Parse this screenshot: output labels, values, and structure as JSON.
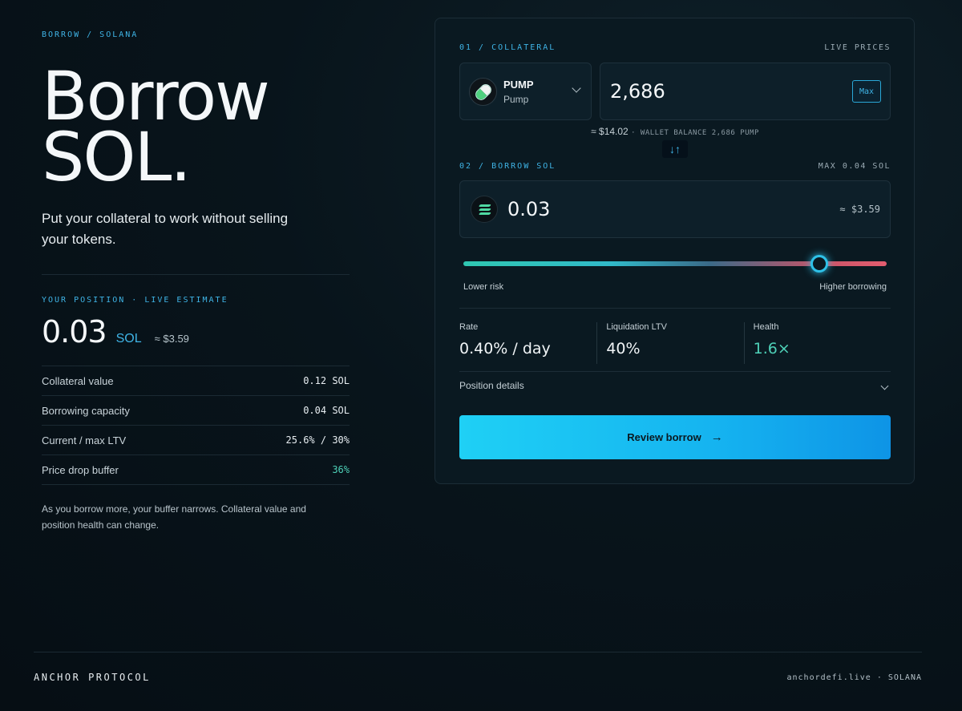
{
  "breadcrumb": "BORROW / SOLANA",
  "hero": {
    "title_line1": "Borrow",
    "title_line2": "SOL.",
    "subtitle": "Put your collateral to work without selling your tokens."
  },
  "position": {
    "eyebrow": "YOUR POSITION · LIVE ESTIMATE",
    "amount": "0.03",
    "unit": "SOL",
    "usd": "≈ $3.59",
    "stats": [
      {
        "label": "Collateral value",
        "value": "0.12 SOL"
      },
      {
        "label": "Borrowing capacity",
        "value": "0.04 SOL"
      },
      {
        "label": "Current / max LTV",
        "value": "25.6% / 30%"
      },
      {
        "label": "Price drop buffer",
        "value": "36%"
      }
    ],
    "note": "As you borrow more, your buffer narrows. Collateral value and position health can change."
  },
  "collateral": {
    "section_label": "01 / COLLATERAL",
    "right_label": "LIVE PRICES",
    "token_symbol": "PUMP",
    "token_name": "Pump",
    "amount": "2,686",
    "max_label": "Max",
    "usd_value": "≈ $14.02",
    "wallet_balance": "WALLET BALANCE 2,686 PUMP",
    "token_icon": "pill-icon"
  },
  "swap": {
    "icon": "swap-arrows-icon",
    "label": "↓↑"
  },
  "borrow": {
    "section_label": "02 / BORROW SOL",
    "right_label": "MAX 0.04 SOL",
    "amount": "0.03",
    "usd_value": "≈ $3.59",
    "token_icon": "solana-icon"
  },
  "slider": {
    "level_fraction": 0.84,
    "low_label": "Lower risk",
    "high_label": "Higher borrowing"
  },
  "metrics": [
    {
      "label": "Rate",
      "value": "0.40% / day"
    },
    {
      "label": "Liquidation LTV",
      "value": "40%"
    },
    {
      "label": "Health",
      "value": "1.6×"
    }
  ],
  "details_label": "Position details",
  "review_button": {
    "label": "Review borrow",
    "arrow": "→"
  },
  "footer": {
    "brand": "ANCHOR PROTOCOL",
    "site": "anchordefi.live · SOLANA"
  },
  "colors": {
    "accent": "#3fb4e6",
    "teal": "#4ed1b8",
    "button": "#15b3f0",
    "danger": "#e45d6f"
  }
}
